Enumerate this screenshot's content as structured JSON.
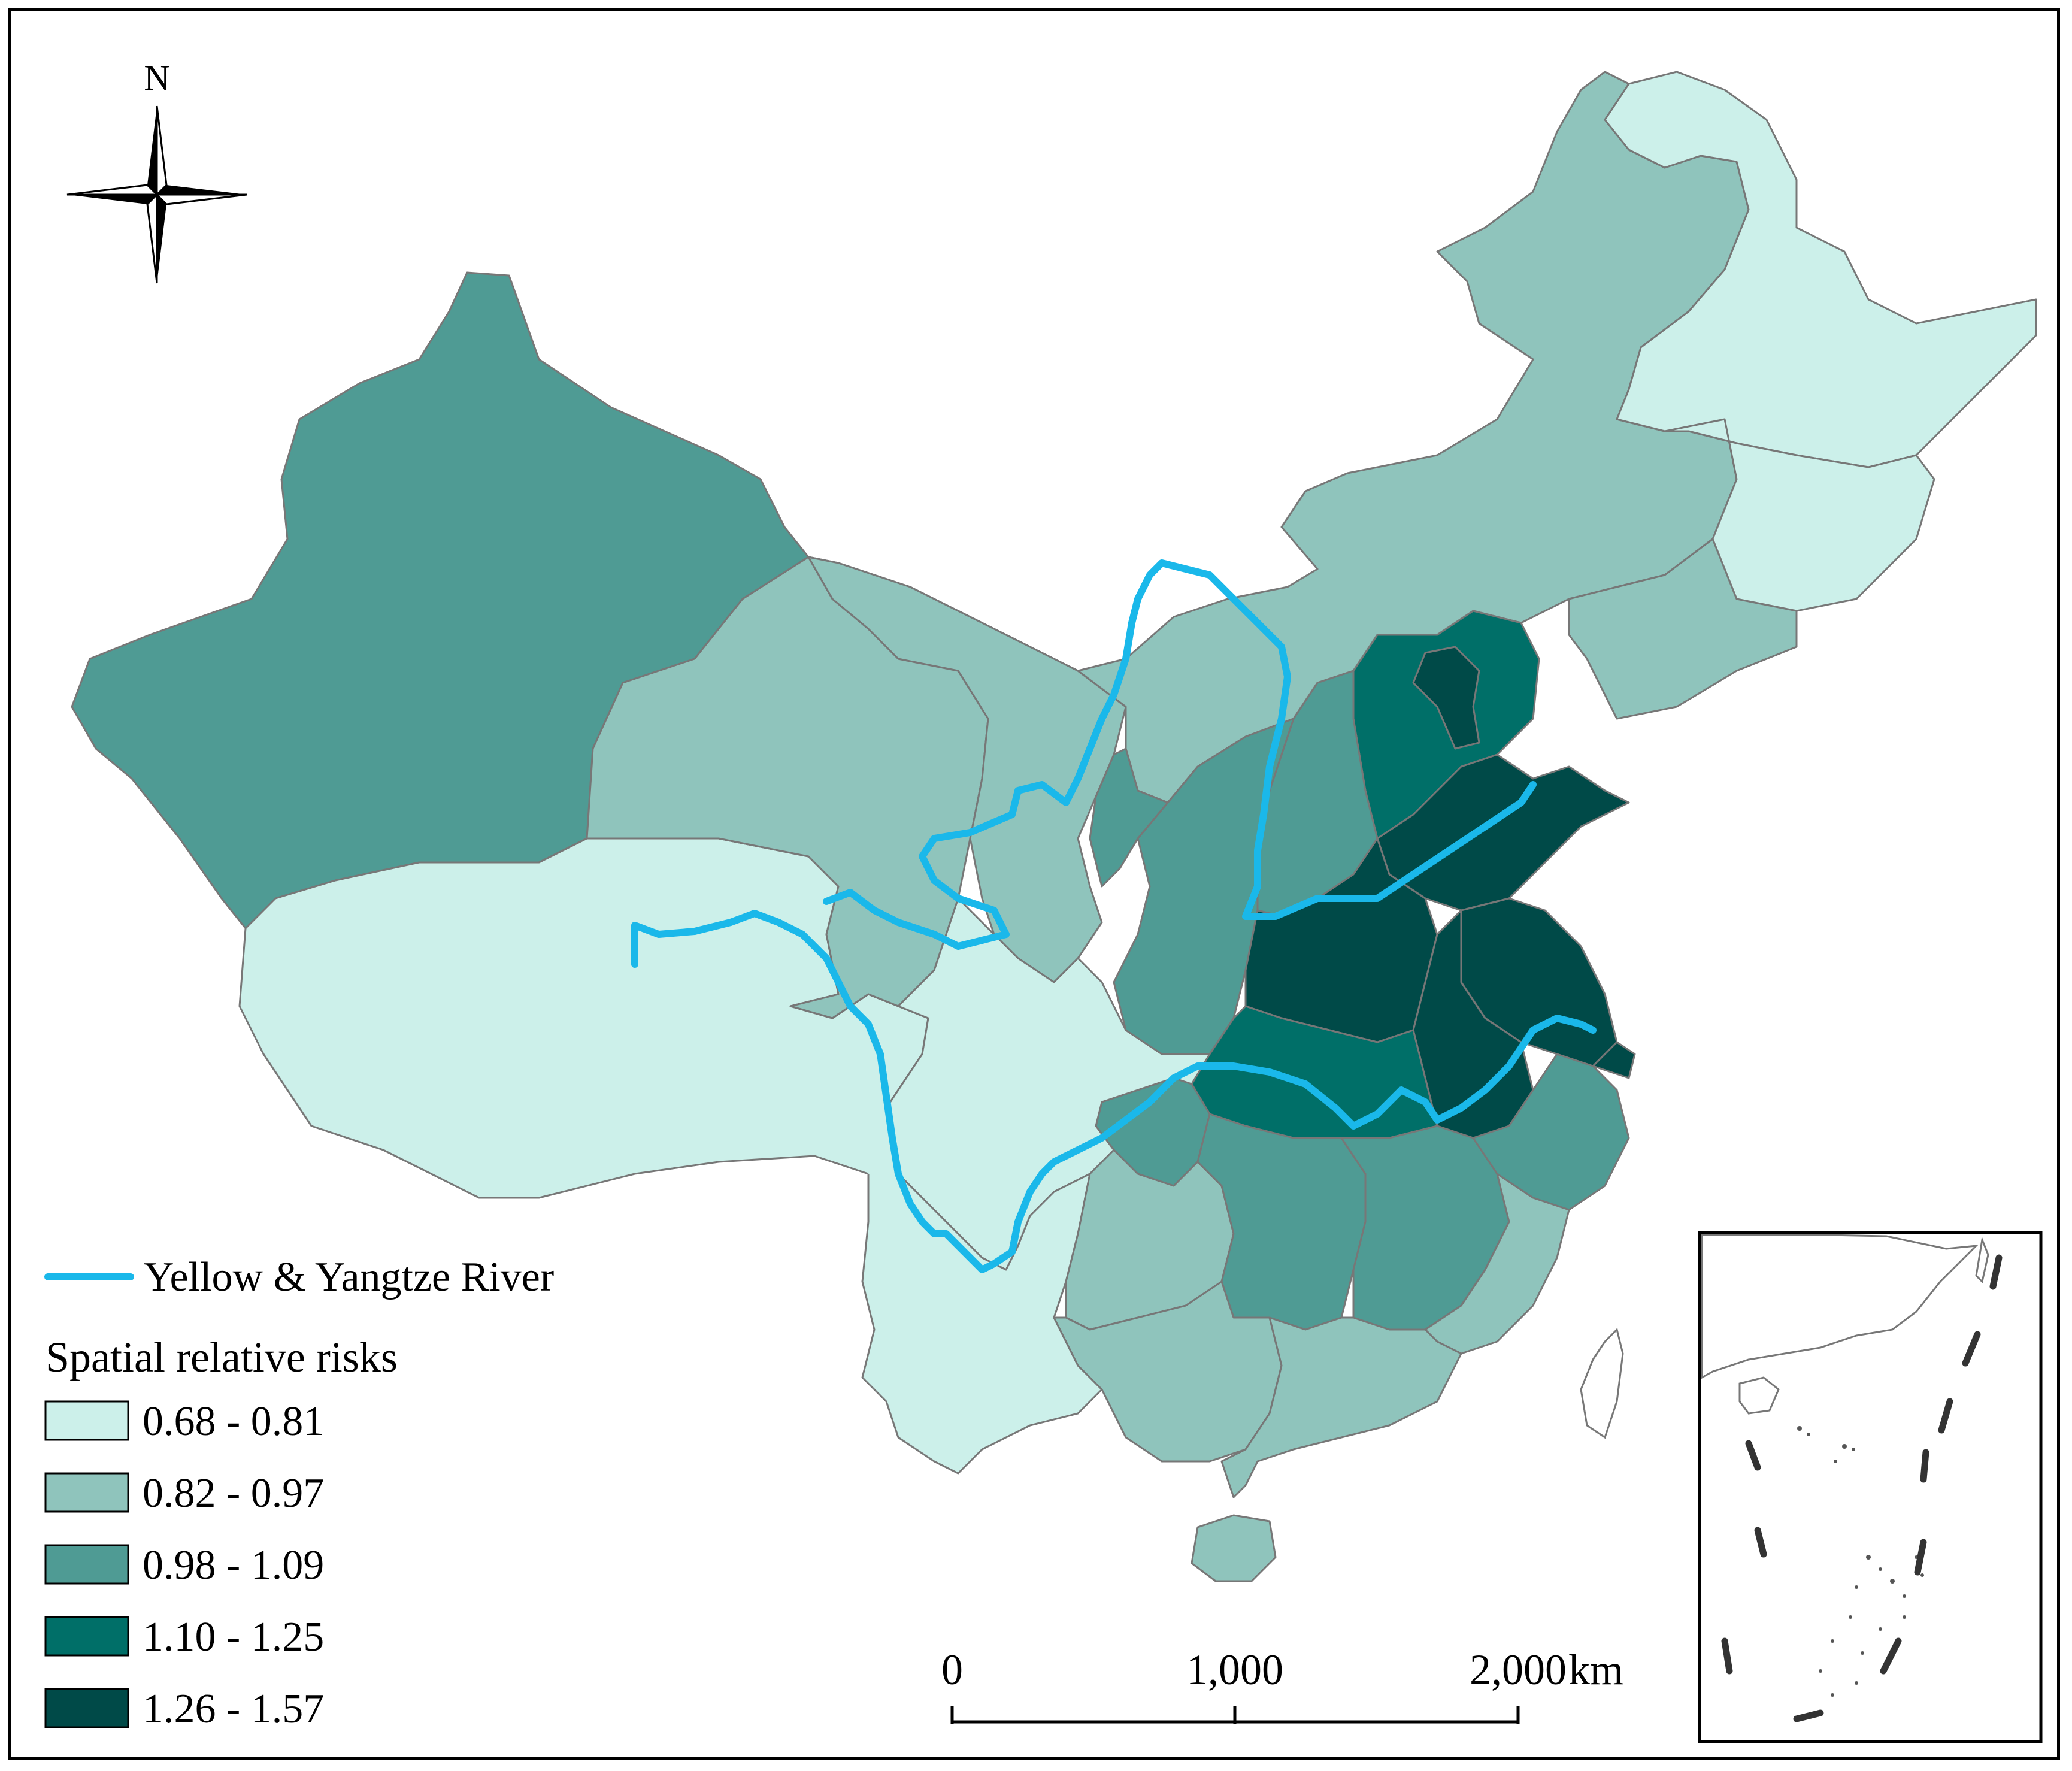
{
  "north_arrow": {
    "label": "N",
    "icon": "compass-rose-icon"
  },
  "river": {
    "label": "Yellow & Yangtze River",
    "color": "#1ab8ea"
  },
  "legend": {
    "title": "Spatial relative risks",
    "classes": [
      {
        "label": "0.68 - 0.81",
        "color": "#ccf0ea"
      },
      {
        "label": "0.82 - 0.97",
        "color": "#8fc4bc"
      },
      {
        "label": "0.98 - 1.09",
        "color": "#4f9b94"
      },
      {
        "label": "1.10 - 1.25",
        "color": "#006f68"
      },
      {
        "label": "1.26 - 1.57",
        "color": "#004a48"
      }
    ]
  },
  "scale_bar": {
    "ticks": [
      "0",
      "1,000",
      "2,000"
    ],
    "unit": "km"
  },
  "inset": {
    "description_icon": "south-china-sea-inset-icon"
  },
  "colors": {
    "boundary": "#777777",
    "inset_dash": "#333333"
  }
}
